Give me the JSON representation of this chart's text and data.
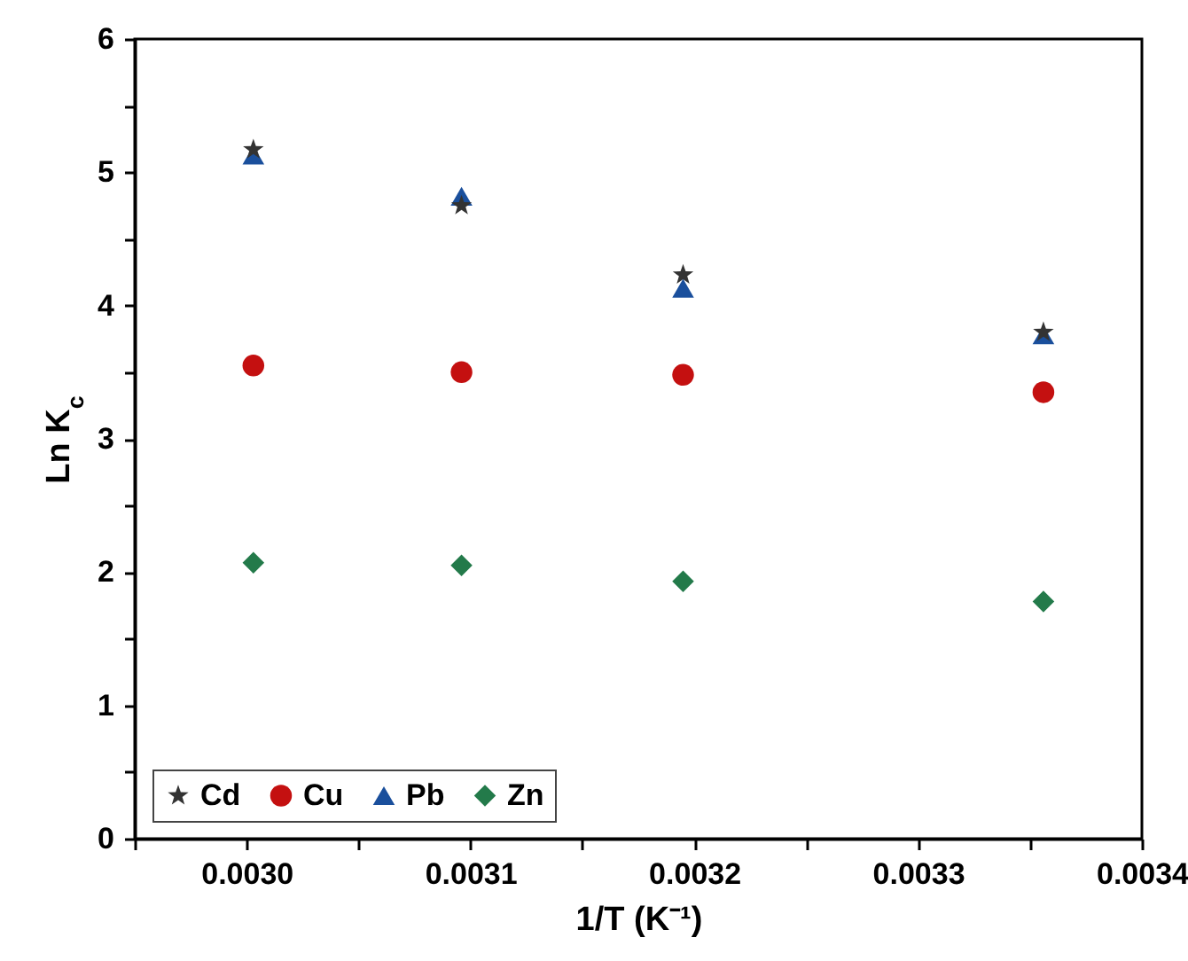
{
  "chart_data": {
    "type": "scatter",
    "xlabel": "1/T (K⁻¹)",
    "ylabel": "Ln K$_{c}$",
    "x": [
      0.003003,
      0.003096,
      0.003195,
      0.003356
    ],
    "series": [
      {
        "name": "Cd",
        "color": "#333333",
        "marker": "star",
        "values": [
          5.17,
          4.75,
          4.23,
          3.8
        ]
      },
      {
        "name": "Cu",
        "color": "#c41010",
        "marker": "circle",
        "values": [
          3.55,
          3.5,
          3.48,
          3.35
        ]
      },
      {
        "name": "Pb",
        "color": "#1a4f9c",
        "marker": "triangle",
        "values": [
          5.13,
          4.82,
          4.13,
          3.78
        ]
      },
      {
        "name": "Zn",
        "color": "#237a4a",
        "marker": "diamond",
        "values": [
          2.07,
          2.05,
          1.93,
          1.78
        ]
      }
    ],
    "xlim": [
      0.00295,
      0.0034
    ],
    "xticks": [
      {
        "value": 0.00295,
        "label": null
      },
      "0.0030",
      {
        "value": 0.00305,
        "label": null
      },
      {
        "value": 0.0031,
        "label": "0.0031"
      },
      {
        "value": 0.00315,
        "label": null
      },
      {
        "value": 0.0032,
        "label": "0.0032"
      },
      {
        "value": 0.00325,
        "label": null
      },
      {
        "value": 0.0033,
        "label": "0.0033"
      },
      {
        "value": 0.00335,
        "label": null
      },
      {
        "value": 0.0034,
        "label": "0.0034"
      }
    ],
    "ylim": [
      0,
      6
    ],
    "yticks": [
      0,
      {
        "value": 0.5,
        "label": null
      },
      1,
      {
        "value": 1.5,
        "label": null
      },
      2,
      {
        "value": 2.5,
        "label": null
      },
      3,
      {
        "value": 3.5,
        "label": null
      },
      4,
      {
        "value": 4.5,
        "label": null
      },
      5,
      {
        "value": 5.5,
        "label": null
      },
      6
    ],
    "legend": "bottom left",
    "grid": false
  }
}
